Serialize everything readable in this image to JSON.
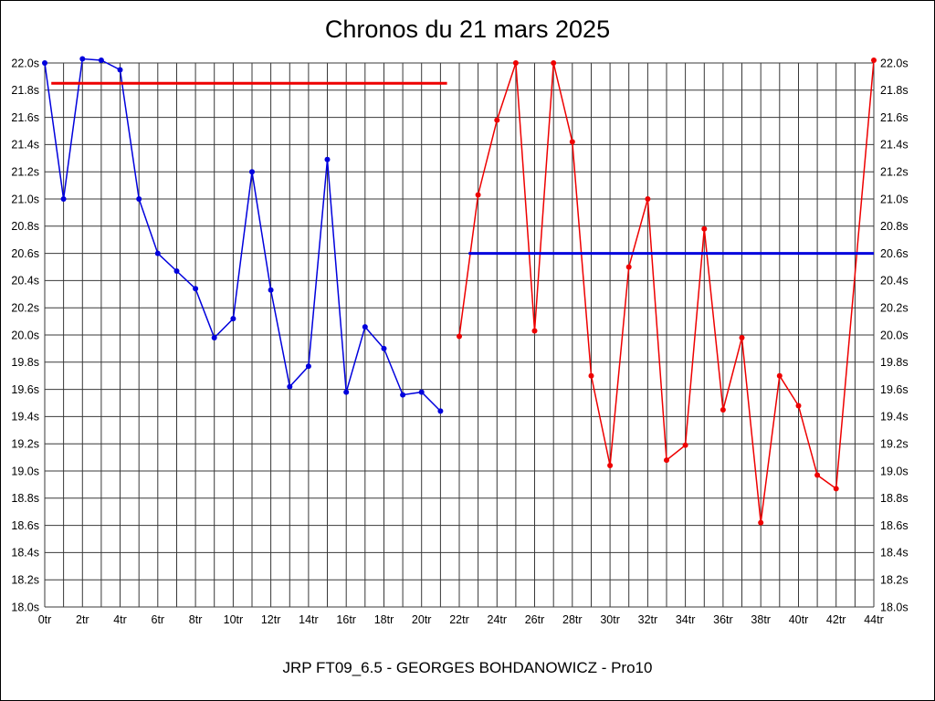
{
  "title": "Chronos du 21 mars 2025",
  "caption": "JRP FT09_6.5 - GEORGES BOHDANOWICZ - Pro10",
  "chart_data": {
    "type": "line",
    "title": "Chronos du 21 mars 2025",
    "subtitle": "JRP FT09_6.5 - GEORGES BOHDANOWICZ - Pro10",
    "xlabel": "",
    "ylabel": "",
    "x_unit": "tr",
    "y_unit": "s",
    "xlim": [
      0,
      44
    ],
    "ylim": [
      18.0,
      22.0
    ],
    "x_grid_step": 1,
    "x_label_step": 2,
    "y_grid_step": 0.2,
    "grid": true,
    "legend": "none",
    "x_tick_labels": [
      "0tr",
      "2tr",
      "4tr",
      "6tr",
      "8tr",
      "10tr",
      "12tr",
      "14tr",
      "16tr",
      "18tr",
      "20tr",
      "22tr",
      "24tr",
      "26tr",
      "28tr",
      "30tr",
      "32tr",
      "34tr",
      "36tr",
      "38tr",
      "40tr",
      "42tr",
      "44tr"
    ],
    "y_tick_labels": [
      "18.0s",
      "18.2s",
      "18.4s",
      "18.6s",
      "18.8s",
      "19.0s",
      "19.2s",
      "19.4s",
      "19.6s",
      "19.8s",
      "20.0s",
      "20.2s",
      "20.4s",
      "20.6s",
      "20.8s",
      "21.0s",
      "21.2s",
      "21.4s",
      "21.6s",
      "21.8s",
      "22.0s"
    ],
    "series": [
      {
        "name": "serie-bleue",
        "color": "#0000dd",
        "marker": "circle",
        "points": [
          [
            0,
            22.0
          ],
          [
            1,
            21.0
          ],
          [
            2,
            22.03
          ],
          [
            3,
            22.02
          ],
          [
            4,
            21.95
          ],
          [
            5,
            21.0
          ],
          [
            6,
            20.6
          ],
          [
            7,
            20.47
          ],
          [
            8,
            20.34
          ],
          [
            9,
            19.98
          ],
          [
            10,
            20.12
          ],
          [
            11,
            21.2
          ],
          [
            12,
            20.33
          ],
          [
            13,
            19.62
          ],
          [
            14,
            19.77
          ],
          [
            15,
            21.29
          ],
          [
            16,
            19.58
          ],
          [
            17,
            20.06
          ],
          [
            18,
            19.9
          ],
          [
            19,
            19.56
          ],
          [
            20,
            19.58
          ],
          [
            21,
            19.44
          ]
        ]
      },
      {
        "name": "serie-rouge",
        "color": "#ee0000",
        "marker": "circle",
        "points": [
          [
            22,
            19.99
          ],
          [
            23,
            21.03
          ],
          [
            24,
            21.58
          ],
          [
            25,
            22.0
          ],
          [
            26,
            20.03
          ],
          [
            27,
            22.0
          ],
          [
            28,
            21.42
          ],
          [
            29,
            19.7
          ],
          [
            30,
            19.04
          ],
          [
            31,
            20.5
          ],
          [
            32,
            21.0
          ],
          [
            33,
            19.08
          ],
          [
            34,
            19.19
          ],
          [
            35,
            20.78
          ],
          [
            36,
            19.45
          ],
          [
            37,
            19.98
          ],
          [
            38,
            18.62
          ],
          [
            39,
            19.7
          ],
          [
            40,
            19.48
          ],
          [
            41,
            18.97
          ],
          [
            42,
            18.87
          ],
          [
            44,
            22.02
          ]
        ]
      }
    ],
    "reference_lines": [
      {
        "name": "repere-rouge",
        "color": "#ee0000",
        "y": 21.85,
        "x_from": 0.35,
        "x_to": 21.35
      },
      {
        "name": "repere-bleu",
        "color": "#0000dd",
        "y": 20.6,
        "x_from": 22.5,
        "x_to": 44
      }
    ]
  }
}
